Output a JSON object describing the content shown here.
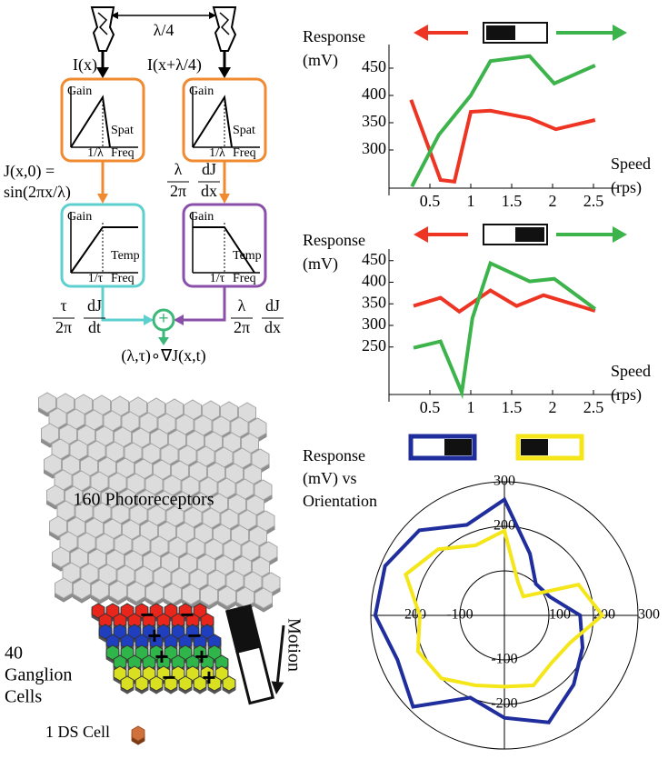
{
  "diagram": {
    "spacing": "λ/4",
    "input_left": "I(x)",
    "input_right": "I(x+λ/4)",
    "spatial_filters": [
      {
        "gain": "Gain",
        "axis": "Spat",
        "tick": "1/λ",
        "freq": "Freq"
      },
      {
        "gain": "Gain",
        "axis": "Spat",
        "tick": "1/λ",
        "freq": "Freq"
      }
    ],
    "phase_left": [
      "J(x,0) =",
      "sin(2πx/λ)"
    ],
    "phase_right": {
      "n1": "λ",
      "d1": "2π",
      "n2": "dJ",
      "d2": "dx"
    },
    "temporal_filters": [
      {
        "gain": "Gain",
        "axis": "Temp",
        "tick": "1/τ",
        "freq": "Freq"
      },
      {
        "gain": "Gain",
        "axis": "Temp",
        "tick": "1/τ",
        "freq": "Freq"
      }
    ],
    "term_left": {
      "n1": "τ",
      "d1": "2π",
      "n2": "dJ",
      "d2": "dt"
    },
    "term_right": {
      "n1": "λ",
      "d1": "2π",
      "n2": "dJ",
      "d2": "dx"
    },
    "sum": "+",
    "output": "(λ,τ)∘∇J(x,t)",
    "photoreceptors": "160 Photoreceptors",
    "ganglion": [
      "40",
      "Ganglion",
      "Cells"
    ],
    "ganglion_signs": [
      [
        "−",
        "−"
      ],
      [
        "+",
        "−"
      ],
      [
        "+",
        "+"
      ],
      [
        "−",
        "+"
      ]
    ],
    "motion": "Motion",
    "ds_cell": "1 DS Cell"
  },
  "chart_data": [
    {
      "type": "line",
      "ylabel": [
        "Response",
        "(mV)"
      ],
      "xlabel": [
        "Speed",
        "(rps)"
      ],
      "dark_half": "left",
      "xlim": [
        0,
        2.8
      ],
      "xticks": [
        0.5,
        1,
        1.5,
        2,
        2.5
      ],
      "ylim": [
        230,
        480
      ],
      "yticks": [
        300,
        350,
        400,
        450
      ],
      "grid": false,
      "series": [
        {
          "color": "#ee3524",
          "direction": "left",
          "x": [
            0.27,
            0.63,
            0.8,
            1.0,
            1.24,
            1.72,
            2.04,
            2.52
          ],
          "values": [
            392,
            245,
            242,
            370,
            372,
            358,
            338,
            355
          ]
        },
        {
          "color": "#3cb44b",
          "direction": "right",
          "x": [
            0.28,
            0.61,
            1.0,
            1.24,
            1.72,
            2.02,
            2.52
          ],
          "values": [
            233,
            328,
            400,
            463,
            472,
            422,
            455
          ]
        }
      ]
    },
    {
      "type": "line",
      "ylabel": [
        "Response",
        "(mV)"
      ],
      "xlabel": [
        "Speed",
        "(rps)"
      ],
      "dark_half": "right",
      "xlim": [
        0,
        2.8
      ],
      "xticks": [
        0.5,
        1,
        1.5,
        2,
        2.5
      ],
      "ylim": [
        140,
        460
      ],
      "yticks": [
        250,
        300,
        350,
        400,
        450
      ],
      "grid": false,
      "series": [
        {
          "color": "#ee3524",
          "direction": "left",
          "x": [
            0.3,
            0.63,
            0.86,
            1.24,
            1.56,
            1.89,
            2.52
          ],
          "values": [
            345,
            364,
            332,
            381,
            345,
            370,
            334
          ]
        },
        {
          "color": "#3cb44b",
          "direction": "right",
          "x": [
            0.3,
            0.63,
            0.89,
            1.02,
            1.24,
            1.72,
            2.02,
            2.52
          ],
          "values": [
            248,
            263,
            145,
            317,
            444,
            402,
            408,
            338
          ]
        }
      ]
    },
    {
      "type": "polar",
      "title": [
        "Response",
        "(mV) vs",
        "Orientation"
      ],
      "rlim": [
        0,
        300
      ],
      "rticks": [
        100,
        200,
        300
      ],
      "rticks_right": [
        100,
        200,
        300
      ],
      "rticks_up": [
        200,
        300
      ],
      "rticks_down": [
        {
          "value": 100,
          "label": "-100"
        },
        {
          "value": 200,
          "label": "-200"
        }
      ],
      "rticks_left": [
        {
          "value": 100,
          "label": "-100"
        },
        {
          "value": 200,
          "label": "200"
        }
      ],
      "theta": [
        0,
        22.5,
        45,
        67.5,
        90,
        112.5,
        135,
        157.5,
        180,
        202.5,
        225,
        247.5,
        270,
        292.5,
        315,
        337.5
      ],
      "series": [
        {
          "color": "#1f2e9c",
          "dark_half": "right",
          "values": [
            170,
            110,
            100,
            150,
            260,
            220,
            270,
            290,
            290,
            260,
            290,
            200,
            230,
            260,
            220,
            190
          ]
        },
        {
          "color": "#f5e61a",
          "dark_half": "left",
          "values": [
            220,
            180,
            60,
            80,
            190,
            170,
            210,
            240,
            190,
            210,
            200,
            170,
            160,
            170,
            150,
            160
          ]
        }
      ]
    }
  ]
}
